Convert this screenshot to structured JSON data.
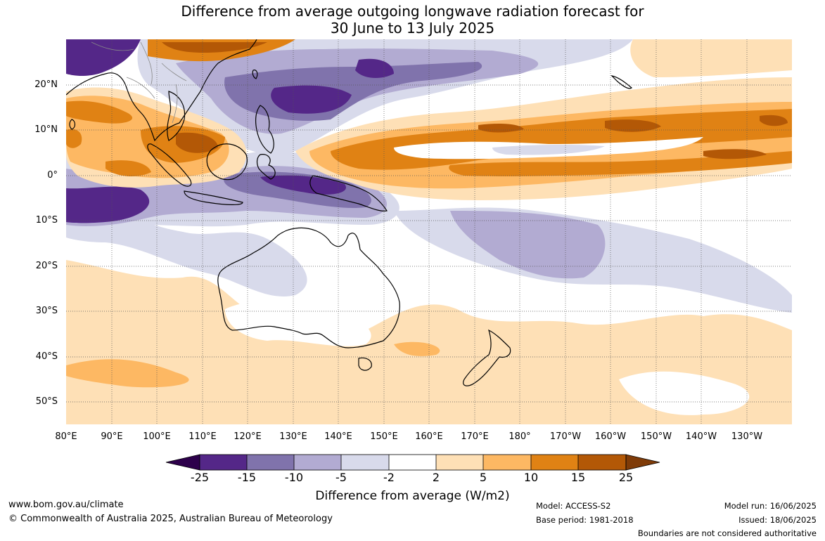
{
  "title": {
    "line1": "Difference from average outgoing longwave radiation forecast for",
    "line2": "30 June to 13 July 2025"
  },
  "map": {
    "lat_labels": [
      "20°N",
      "10°N",
      "0°",
      "10°S",
      "20°S",
      "30°S",
      "40°S",
      "50°S"
    ],
    "lon_labels": [
      "80°E",
      "90°E",
      "100°E",
      "110°E",
      "120°E",
      "130°E",
      "140°E",
      "150°E",
      "160°E",
      "170°E",
      "180°",
      "170°W",
      "160°W",
      "150°W",
      "140°W",
      "130°W"
    ],
    "anomaly_colors": {
      "lt_-25": "#2d004b",
      "-25_-15": "#542788",
      "-15_-10": "#8073ac",
      "-10_-5": "#b2abd2",
      "-5_-2": "#d8daeb",
      "-2_2": "#ffffff",
      "2_5": "#fee0b6",
      "5_10": "#fdb863",
      "10_15": "#e08214",
      "15_25": "#b35806",
      "gt_25": "#7f3b08"
    }
  },
  "colorbar": {
    "ticks": [
      "-25",
      "-15",
      "-10",
      "-5",
      "-2",
      "2",
      "5",
      "10",
      "15",
      "25"
    ],
    "colors": [
      "#542788",
      "#8073ac",
      "#b2abd2",
      "#d8daeb",
      "#ffffff",
      "#fee0b6",
      "#fdb863",
      "#e08214",
      "#b35806"
    ],
    "low_extend_color": "#2d004b",
    "high_extend_color": "#7f3b08",
    "label": "Difference from average (W/m2)"
  },
  "footer": {
    "website": "www.bom.gov.au/climate",
    "copyright": "© Commonwealth of Australia 2025, Australian Bureau of Meteorology",
    "model": "Model: ACCESS-S2",
    "base_period": "Base period: 1981-2018",
    "model_run": "Model run: 16/06/2025",
    "issued": "Issued: 18/06/2025",
    "disclaimer": "Boundaries are not considered authoritative"
  }
}
